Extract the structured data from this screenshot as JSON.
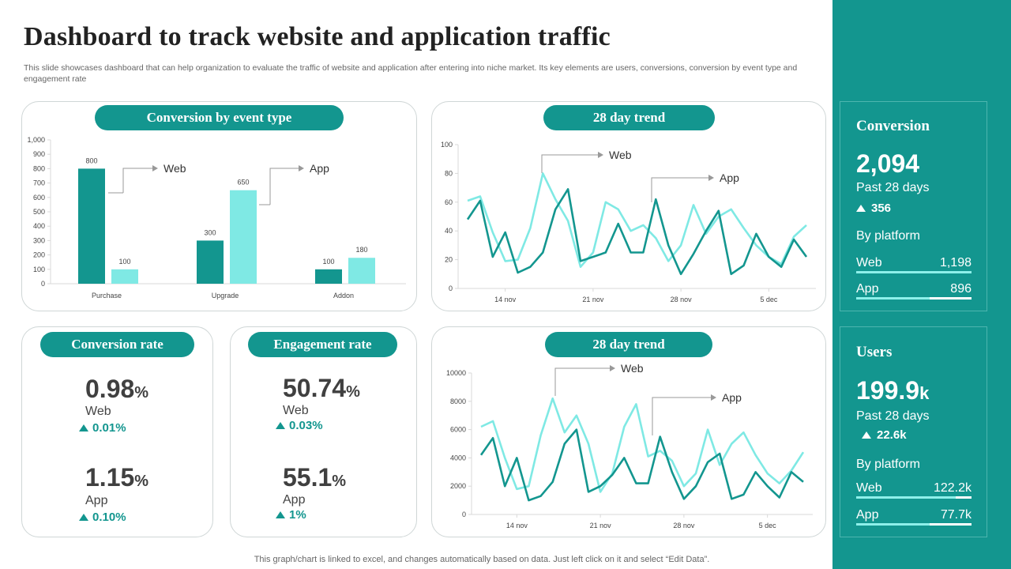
{
  "page": {
    "title": "Dashboard to track website and application traffic",
    "subtitle": "This slide showcases dashboard that can help organization to evaluate the traffic of website and application after entering into niche market. Its key elements are users, conversions, conversion by event type and engagement rate",
    "footer": "This graph/chart is linked to excel, and changes automatically based on data. Just left click on it and select “Edit Data”."
  },
  "colors": {
    "web": "#13968f",
    "app": "#7fe9e4",
    "accent": "#13968f"
  },
  "panels": {
    "conversion_event": {
      "title": "Conversion by event type",
      "web_label": "Web",
      "app_label": "App"
    },
    "trend_top": {
      "title": "28 day trend",
      "web_label": "Web",
      "app_label": "App"
    },
    "trend_bottom": {
      "title": "28 day trend",
      "web_label": "Web",
      "app_label": "App"
    },
    "conversion_rate": {
      "title": "Conversion rate",
      "web": {
        "value": "0.98",
        "unit": "%",
        "label": "Web",
        "delta": "0.01%"
      },
      "app": {
        "value": "1.15",
        "unit": "%",
        "label": "App",
        "delta": "0.10%"
      }
    },
    "engagement_rate": {
      "title": "Engagement rate",
      "web": {
        "value": "50.74",
        "unit": "%",
        "label": "Web",
        "delta": "0.03%"
      },
      "app": {
        "value": "55.1",
        "unit": "%",
        "label": "App",
        "delta": "1%"
      }
    }
  },
  "sidebar": {
    "conversion": {
      "heading": "Conversion",
      "value": "2,094",
      "period": "Past 28 days",
      "delta": "356",
      "by_platform": "By platform",
      "web": {
        "label": "Web",
        "value": "1,198",
        "share": 1.0
      },
      "app": {
        "label": "App",
        "value": "896",
        "share": 0.64
      }
    },
    "users": {
      "heading": "Users",
      "value": "199.9",
      "unit": "k",
      "period": "Past 28 days",
      "delta": "22.6k",
      "by_platform": "By platform",
      "web": {
        "label": "Web",
        "value": "122.2k",
        "share": 0.86
      },
      "app": {
        "label": "App",
        "value": "77.7k",
        "share": 0.64
      }
    }
  },
  "chart_data": [
    {
      "type": "bar",
      "title": "Conversion by event type",
      "categories": [
        "Purchase",
        "Upgrade",
        "Addon"
      ],
      "series": [
        {
          "name": "Web",
          "values": [
            800,
            300,
            100
          ]
        },
        {
          "name": "App",
          "values": [
            100,
            650,
            180
          ]
        }
      ],
      "ylim": [
        0,
        1000
      ],
      "yticks": [
        0,
        100,
        200,
        300,
        400,
        500,
        600,
        700,
        800,
        900,
        1000
      ],
      "ytick_labels": [
        "0",
        "100",
        "200",
        "300",
        "400",
        "500",
        "600",
        "700",
        "800",
        "900",
        "1,000"
      ]
    },
    {
      "type": "line",
      "title": "28 day trend",
      "x": [
        1,
        2,
        3,
        4,
        5,
        6,
        7,
        8,
        9,
        10,
        11,
        12,
        13,
        14,
        15,
        16,
        17,
        18,
        19,
        20,
        21,
        22,
        23,
        24,
        25,
        26,
        27,
        28
      ],
      "xticks": [
        4,
        11,
        18,
        25
      ],
      "xtick_labels": [
        "14 nov",
        "21 nov",
        "28 nov",
        "5 dec"
      ],
      "series": [
        {
          "name": "Web",
          "values": [
            61,
            64,
            39,
            19,
            20,
            42,
            80,
            62,
            47,
            15,
            25,
            60,
            55,
            40,
            44,
            35,
            19,
            30,
            58,
            38,
            50,
            55,
            42,
            30,
            22,
            17,
            36,
            44
          ]
        },
        {
          "name": "App",
          "values": [
            48,
            61,
            22,
            39,
            11,
            15,
            25,
            55,
            69,
            19,
            22,
            25,
            45,
            25,
            25,
            62,
            30,
            10,
            24,
            40,
            54,
            10,
            16,
            38,
            22,
            15,
            34,
            22
          ]
        }
      ],
      "ylim": [
        0,
        100
      ],
      "yticks": [
        0,
        20,
        40,
        60,
        80,
        100
      ]
    },
    {
      "type": "line",
      "title": "28 day trend",
      "x": [
        1,
        2,
        3,
        4,
        5,
        6,
        7,
        8,
        9,
        10,
        11,
        12,
        13,
        14,
        15,
        16,
        17,
        18,
        19,
        20,
        21,
        22,
        23,
        24,
        25,
        26,
        27,
        28
      ],
      "xticks": [
        4,
        11,
        18,
        25
      ],
      "xtick_labels": [
        "14 nov",
        "21 nov",
        "28 nov",
        "5 dec"
      ],
      "series": [
        {
          "name": "Web",
          "values": [
            6200,
            6600,
            4000,
            1800,
            2000,
            5600,
            8200,
            5800,
            7000,
            5000,
            1600,
            2900,
            6200,
            7800,
            4100,
            4500,
            3800,
            2000,
            2900,
            6000,
            3500,
            5000,
            5800,
            4200,
            2900,
            2200,
            3100,
            4400
          ]
        },
        {
          "name": "App",
          "values": [
            4200,
            5400,
            2000,
            4000,
            1000,
            1300,
            2300,
            5000,
            6000,
            1600,
            2000,
            2800,
            4000,
            2200,
            2200,
            5500,
            3000,
            1100,
            2000,
            3700,
            4300,
            1100,
            1400,
            3000,
            2000,
            1200,
            3000,
            2300
          ]
        }
      ],
      "ylim": [
        0,
        10000
      ],
      "yticks": [
        0,
        2000,
        4000,
        6000,
        8000,
        10000
      ]
    }
  ]
}
